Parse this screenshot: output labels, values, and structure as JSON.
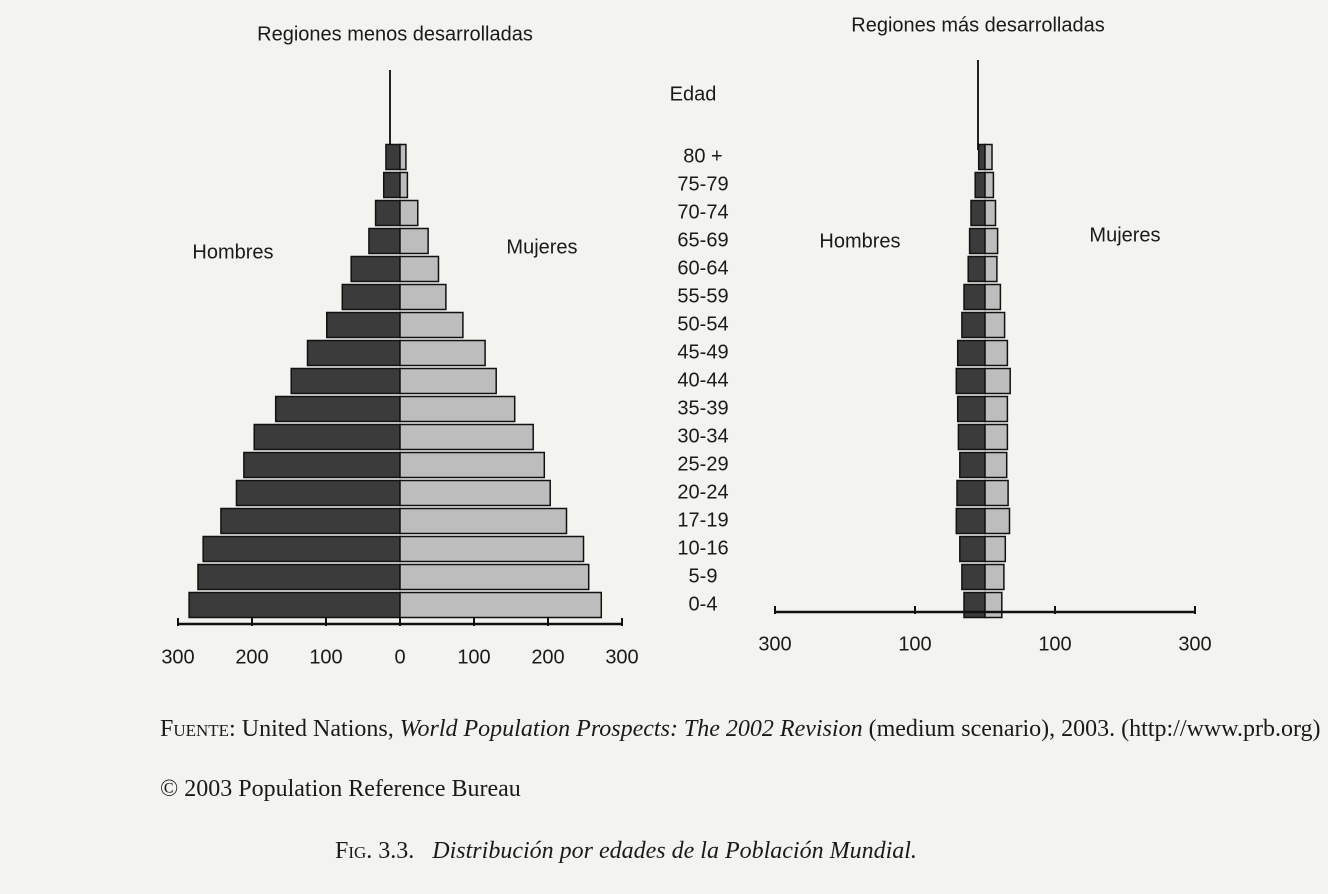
{
  "chart_data": [
    {
      "type": "pyramid",
      "title": "Regiones menos desarrolladas",
      "y_label": "Edad",
      "categories": [
        "80 +",
        "75-79",
        "70-74",
        "65-69",
        "60-64",
        "55-59",
        "50-54",
        "45-49",
        "40-44",
        "35-39",
        "30-34",
        "25-29",
        "20-24",
        "17-19",
        "10-16",
        "5-9",
        "0-4"
      ],
      "series": [
        {
          "name": "Hombres",
          "color": "#3b3b3b",
          "values": [
            19,
            22,
            33,
            42,
            66,
            78,
            99,
            125,
            147,
            168,
            197,
            211,
            221,
            242,
            266,
            273,
            285
          ]
        },
        {
          "name": "Mujeres",
          "color": "#bdbdbd",
          "values": [
            8,
            10,
            24,
            38,
            52,
            62,
            85,
            115,
            130,
            155,
            180,
            195,
            203,
            225,
            248,
            255,
            272
          ]
        }
      ],
      "xlim": [
        -300,
        300
      ],
      "xticks": [
        {
          "value": -300,
          "label": "300"
        },
        {
          "value": -200,
          "label": "200"
        },
        {
          "value": -100,
          "label": "100"
        },
        0,
        100,
        200,
        300
      ]
    },
    {
      "type": "pyramid",
      "title": "Regiones más desarrolladas",
      "series": [
        {
          "name": "Hombres",
          "color": "#3b3b3b",
          "values": [
            9,
            14,
            20,
            22,
            24,
            30,
            33,
            39,
            41,
            39,
            38,
            36,
            40,
            41,
            36,
            33,
            30
          ]
        },
        {
          "name": "Mujeres",
          "color": "#bdbdbd",
          "values": [
            10,
            12,
            15,
            18,
            17,
            22,
            28,
            32,
            36,
            32,
            32,
            31,
            33,
            35,
            29,
            27,
            24
          ]
        }
      ],
      "xlim": [
        -300,
        300
      ],
      "xticks": [
        {
          "value": -300,
          "label": "300"
        },
        {
          "value": -100,
          "label": "100"
        },
        100,
        300
      ]
    }
  ],
  "source": {
    "label": "Fuente:",
    "text1": " United Nations, ",
    "title": "World Population Prospects: The 2002 Revision",
    "text2": " (medium scenario), 2003. (http://www.prb.org)"
  },
  "copyright": "© 2003 Population Reference Bureau",
  "caption": {
    "label": "Fig. 3.3.",
    "text": "Distribución por edades de la Población Mundial."
  }
}
